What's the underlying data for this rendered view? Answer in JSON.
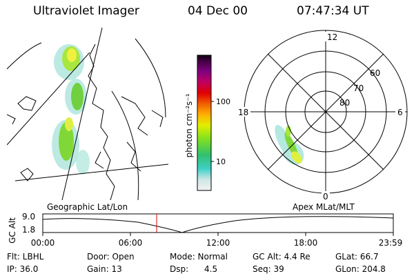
{
  "header": {
    "instrument": "Ultraviolet Imager",
    "date": "04 Dec 00",
    "time": "07:47:34 UT"
  },
  "colorbar": {
    "unit_label": "photon cm⁻²s⁻¹",
    "ticks": [
      "100",
      "10"
    ]
  },
  "left_panel": {
    "caption": "Geographic Lat/Lon"
  },
  "right_panel": {
    "caption": "Apex  MLat/MLT",
    "mlt_labels": {
      "top": "12",
      "left": "18",
      "right": "6",
      "bottom": "0"
    },
    "mlat_labels": [
      "60",
      "70",
      "80"
    ]
  },
  "timeline": {
    "axis_label": "GC Alt",
    "y_ticks": [
      "9.0",
      "1.8"
    ],
    "x_ticks": [
      "00:00",
      "06:00",
      "12:00",
      "18:00",
      "23:59"
    ],
    "current_time_marker": "07:47:34"
  },
  "footer": {
    "row1": [
      "Flt: LBHL",
      "Door: Open",
      "Mode: Normal",
      "GC Alt: 4.4 Re",
      "GLat:  66.7"
    ],
    "row2": [
      "IP: 36.0",
      "Gain: 13",
      "Dsp:      4.5",
      "Seq: 39",
      "GLon: 204.8"
    ]
  },
  "colors": {
    "marker": "#e00000",
    "lines": "#000000"
  }
}
